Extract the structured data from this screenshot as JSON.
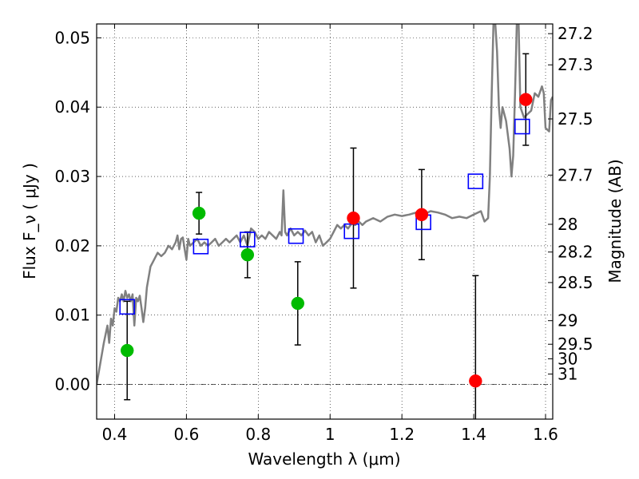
{
  "chart_data": {
    "type": "scatter",
    "xlabel": "Wavelength  λ (μm)",
    "ylabel": "Flux  F_ν  ( μJy )",
    "ylabel_right": "Magnitude (AB)",
    "xlim": [
      0.35,
      1.62
    ],
    "ylim": [
      -0.005,
      0.052
    ],
    "grid": true,
    "x_ticks": [
      {
        "value": 0.4,
        "label": "0.4"
      },
      {
        "value": 0.6,
        "label": "0.6"
      },
      {
        "value": 0.8,
        "label": "0.8"
      },
      {
        "value": 1.0,
        "label": "1"
      },
      {
        "value": 1.2,
        "label": "1.2"
      },
      {
        "value": 1.4,
        "label": "1.4"
      },
      {
        "value": 1.6,
        "label": "1.6"
      }
    ],
    "y_ticks": [
      {
        "value": 0.0,
        "label": "0.00"
      },
      {
        "value": 0.01,
        "label": "0.01"
      },
      {
        "value": 0.02,
        "label": "0.02"
      },
      {
        "value": 0.03,
        "label": "0.03"
      },
      {
        "value": 0.04,
        "label": "0.04"
      },
      {
        "value": 0.05,
        "label": "0.05"
      }
    ],
    "right_ticks": [
      {
        "flux": 0.0506,
        "label": "27.2"
      },
      {
        "flux": 0.0461,
        "label": "27.3"
      },
      {
        "flux": 0.0383,
        "label": "27.5"
      },
      {
        "flux": 0.0302,
        "label": "27.7"
      },
      {
        "flux": 0.0231,
        "label": "28"
      },
      {
        "flux": 0.0191,
        "label": "28.2"
      },
      {
        "flux": 0.0147,
        "label": "28.5"
      },
      {
        "flux": 0.0092,
        "label": "29"
      },
      {
        "flux": 0.0058,
        "label": "29.5"
      },
      {
        "flux": 0.0037,
        "label": "30"
      },
      {
        "flux": 0.0015,
        "label": "31"
      }
    ],
    "series": [
      {
        "kind": "line",
        "color": "#808080",
        "points": [
          [
            0.35,
            0.0
          ],
          [
            0.36,
            0.003
          ],
          [
            0.37,
            0.006
          ],
          [
            0.38,
            0.0085
          ],
          [
            0.385,
            0.006
          ],
          [
            0.39,
            0.0095
          ],
          [
            0.395,
            0.0085
          ],
          [
            0.4,
            0.011
          ],
          [
            0.405,
            0.0105
          ],
          [
            0.41,
            0.0125
          ],
          [
            0.415,
            0.012
          ],
          [
            0.42,
            0.013
          ],
          [
            0.425,
            0.012
          ],
          [
            0.43,
            0.0135
          ],
          [
            0.435,
            0.0125
          ],
          [
            0.44,
            0.013
          ],
          [
            0.445,
            0.012
          ],
          [
            0.45,
            0.013
          ],
          [
            0.455,
            0.0085
          ],
          [
            0.46,
            0.0125
          ],
          [
            0.465,
            0.012
          ],
          [
            0.47,
            0.0128
          ],
          [
            0.475,
            0.011
          ],
          [
            0.48,
            0.009
          ],
          [
            0.485,
            0.011
          ],
          [
            0.49,
            0.014
          ],
          [
            0.5,
            0.017
          ],
          [
            0.51,
            0.018
          ],
          [
            0.52,
            0.019
          ],
          [
            0.53,
            0.0185
          ],
          [
            0.54,
            0.019
          ],
          [
            0.55,
            0.02
          ],
          [
            0.56,
            0.0195
          ],
          [
            0.57,
            0.0205
          ],
          [
            0.575,
            0.0215
          ],
          [
            0.58,
            0.0195
          ],
          [
            0.585,
            0.021
          ],
          [
            0.59,
            0.0212
          ],
          [
            0.595,
            0.0195
          ],
          [
            0.6,
            0.018
          ],
          [
            0.605,
            0.021
          ],
          [
            0.61,
            0.02
          ],
          [
            0.62,
            0.0205
          ],
          [
            0.63,
            0.021
          ],
          [
            0.64,
            0.02
          ],
          [
            0.65,
            0.0205
          ],
          [
            0.66,
            0.02
          ],
          [
            0.67,
            0.0205
          ],
          [
            0.68,
            0.021
          ],
          [
            0.69,
            0.02
          ],
          [
            0.7,
            0.0205
          ],
          [
            0.71,
            0.021
          ],
          [
            0.72,
            0.0205
          ],
          [
            0.73,
            0.021
          ],
          [
            0.74,
            0.0215
          ],
          [
            0.75,
            0.0205
          ],
          [
            0.76,
            0.0215
          ],
          [
            0.77,
            0.02
          ],
          [
            0.78,
            0.0225
          ],
          [
            0.79,
            0.022
          ],
          [
            0.8,
            0.021
          ],
          [
            0.81,
            0.0215
          ],
          [
            0.82,
            0.021
          ],
          [
            0.83,
            0.022
          ],
          [
            0.84,
            0.0215
          ],
          [
            0.85,
            0.021
          ],
          [
            0.86,
            0.022
          ],
          [
            0.865,
            0.0215
          ],
          [
            0.87,
            0.028
          ],
          [
            0.875,
            0.022
          ],
          [
            0.88,
            0.0215
          ],
          [
            0.89,
            0.0225
          ],
          [
            0.9,
            0.0215
          ],
          [
            0.91,
            0.022
          ],
          [
            0.92,
            0.0215
          ],
          [
            0.93,
            0.0222
          ],
          [
            0.94,
            0.0215
          ],
          [
            0.95,
            0.022
          ],
          [
            0.96,
            0.0205
          ],
          [
            0.97,
            0.0215
          ],
          [
            0.98,
            0.02
          ],
          [
            0.99,
            0.0205
          ],
          [
            1.0,
            0.021
          ],
          [
            1.01,
            0.022
          ],
          [
            1.02,
            0.023
          ],
          [
            1.03,
            0.0225
          ],
          [
            1.04,
            0.023
          ],
          [
            1.05,
            0.0225
          ],
          [
            1.06,
            0.0232
          ],
          [
            1.07,
            0.023
          ],
          [
            1.08,
            0.0235
          ],
          [
            1.09,
            0.023
          ],
          [
            1.1,
            0.0235
          ],
          [
            1.12,
            0.024
          ],
          [
            1.14,
            0.0235
          ],
          [
            1.16,
            0.0242
          ],
          [
            1.18,
            0.0245
          ],
          [
            1.2,
            0.0243
          ],
          [
            1.22,
            0.0245
          ],
          [
            1.24,
            0.0248
          ],
          [
            1.26,
            0.0245
          ],
          [
            1.28,
            0.025
          ],
          [
            1.3,
            0.0248
          ],
          [
            1.32,
            0.0245
          ],
          [
            1.34,
            0.024
          ],
          [
            1.36,
            0.0242
          ],
          [
            1.38,
            0.024
          ],
          [
            1.4,
            0.0245
          ],
          [
            1.42,
            0.025
          ],
          [
            1.43,
            0.0235
          ],
          [
            1.44,
            0.024
          ],
          [
            1.445,
            0.03
          ],
          [
            1.45,
            0.042
          ],
          [
            1.455,
            0.052
          ],
          [
            1.46,
            0.052
          ],
          [
            1.465,
            0.048
          ],
          [
            1.47,
            0.04
          ],
          [
            1.475,
            0.037
          ],
          [
            1.48,
            0.04
          ],
          [
            1.49,
            0.038
          ],
          [
            1.5,
            0.034
          ],
          [
            1.505,
            0.03
          ],
          [
            1.51,
            0.033
          ],
          [
            1.515,
            0.042
          ],
          [
            1.52,
            0.052
          ],
          [
            1.525,
            0.052
          ],
          [
            1.53,
            0.04
          ],
          [
            1.54,
            0.0385
          ],
          [
            1.55,
            0.039
          ],
          [
            1.56,
            0.0395
          ],
          [
            1.57,
            0.042
          ],
          [
            1.58,
            0.0415
          ],
          [
            1.59,
            0.043
          ],
          [
            1.595,
            0.042
          ],
          [
            1.6,
            0.037
          ],
          [
            1.61,
            0.0365
          ],
          [
            1.615,
            0.041
          ],
          [
            1.62,
            0.0415
          ]
        ]
      },
      {
        "kind": "scatter",
        "marker": "square",
        "color": "#0000ff",
        "points": [
          [
            0.435,
            0.0112
          ],
          [
            0.64,
            0.0199
          ],
          [
            0.77,
            0.0209
          ],
          [
            0.905,
            0.0214
          ],
          [
            1.06,
            0.0221
          ],
          [
            1.26,
            0.0234
          ],
          [
            1.405,
            0.0293
          ],
          [
            1.535,
            0.0372
          ]
        ]
      },
      {
        "kind": "scatter",
        "marker": "circle",
        "color": "#00bb00",
        "points": [
          [
            0.435,
            0.0049,
            0.0071
          ],
          [
            0.635,
            0.0247,
            0.003
          ],
          [
            0.77,
            0.0187,
            0.0033
          ],
          [
            0.91,
            0.0117,
            0.006
          ]
        ]
      },
      {
        "kind": "scatter",
        "marker": "circle",
        "color": "#ff0000",
        "points": [
          [
            1.065,
            0.024,
            0.0101
          ],
          [
            1.255,
            0.0245,
            0.0065
          ],
          [
            1.405,
            0.0005,
            0.0152
          ],
          [
            1.545,
            0.0411,
            0.0066
          ]
        ]
      }
    ]
  }
}
